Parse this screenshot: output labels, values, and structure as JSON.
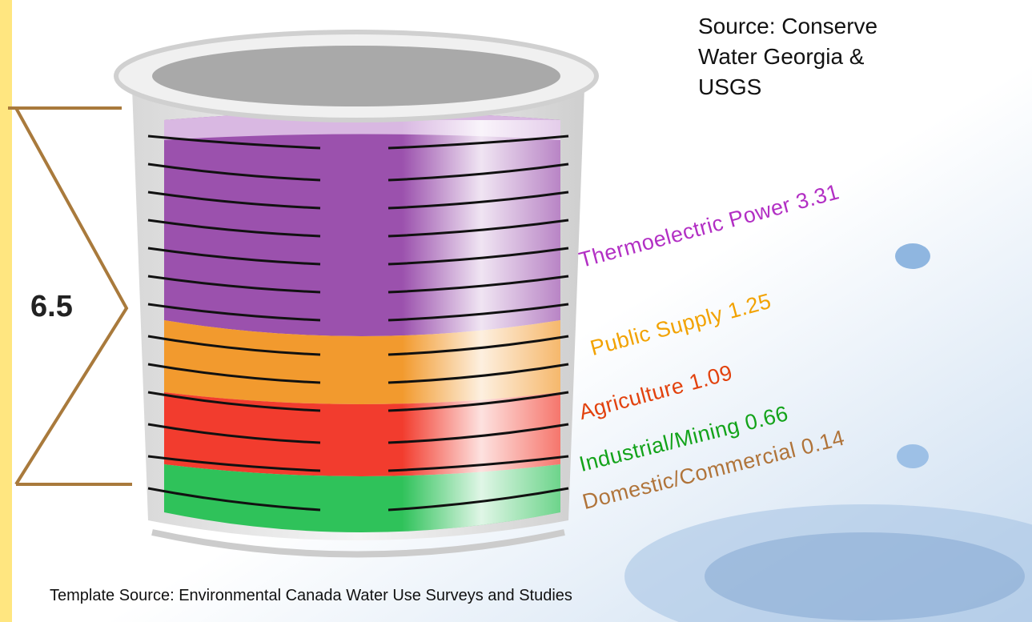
{
  "total_label": "6.5",
  "source": "Source: Conserve Water Georgia & USGS",
  "footer": "Template Source: Environmental Canada Water Use Surveys and Studies",
  "layers": [
    {
      "label": "Thermoelectric Power 3.31",
      "color": "#b22fc4"
    },
    {
      "label": "Public Supply 1.25",
      "color": "#f2a200"
    },
    {
      "label": "Agriculture 1.09",
      "color": "#e2420e"
    },
    {
      "label": "Industrial/Mining 0.66",
      "color": "#13a31a"
    },
    {
      "label": "Domestic/Commercial 0.14",
      "color": "#b0743a"
    }
  ]
}
